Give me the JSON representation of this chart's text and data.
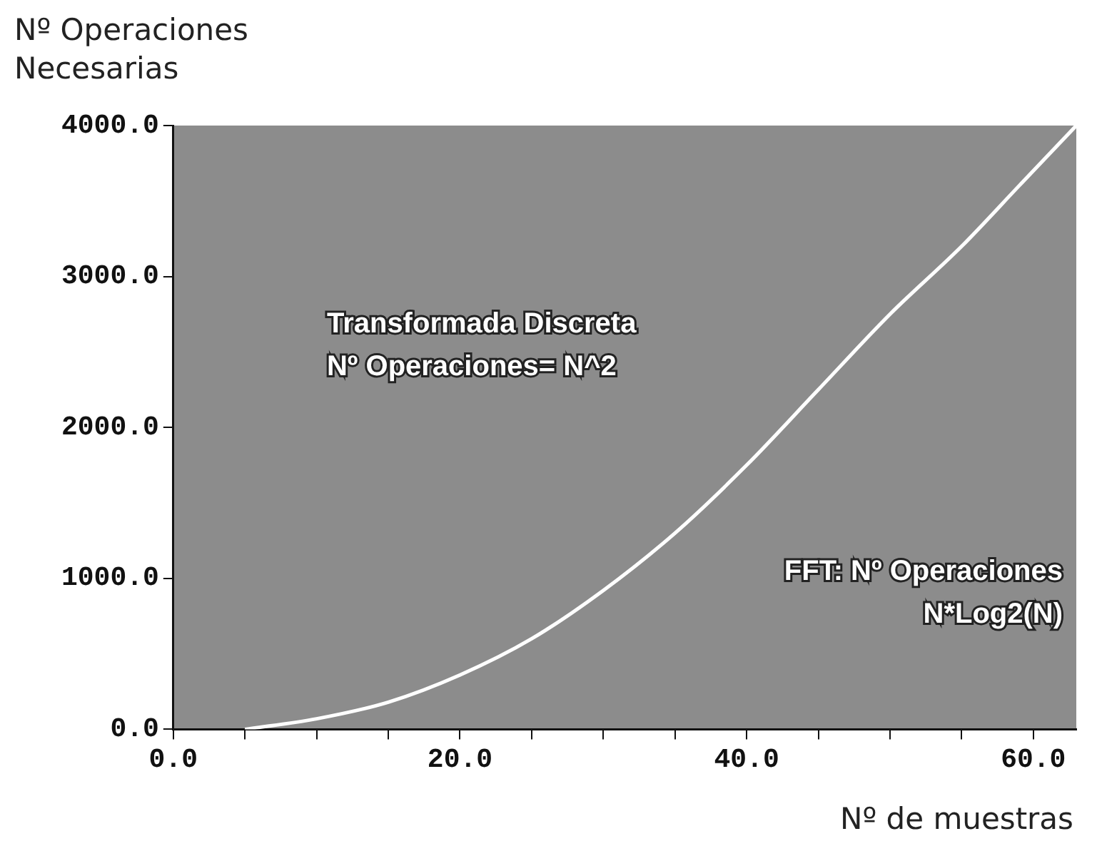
{
  "chart_data": {
    "type": "line",
    "ylabel": "Nº Operaciones\nNecesarias",
    "xlabel": "Nº de muestras",
    "x": [
      5,
      10,
      15,
      20,
      25,
      30,
      35,
      40,
      45,
      50,
      55,
      59,
      63
    ],
    "series": [
      {
        "color": "#ffffff",
        "values": [
          0,
          70,
          180,
          360,
          600,
          920,
          1300,
          1750,
          2250,
          2750,
          3200,
          3600,
          4000
        ]
      }
    ],
    "xlim": [
      0,
      63
    ],
    "xticks": [
      {
        "value": 0,
        "label": "0.0"
      },
      {
        "value": 5,
        "label": null
      },
      {
        "value": 10,
        "label": null
      },
      {
        "value": 15,
        "label": null
      },
      {
        "value": 20,
        "label": "20.0"
      },
      {
        "value": 25,
        "label": null
      },
      {
        "value": 30,
        "label": null
      },
      {
        "value": 35,
        "label": null
      },
      {
        "value": 40,
        "label": "40.0"
      },
      {
        "value": 45,
        "label": null
      },
      {
        "value": 50,
        "label": null
      },
      {
        "value": 55,
        "label": null
      },
      {
        "value": 60,
        "label": "60.0"
      }
    ],
    "ylim": [
      0,
      4000
    ],
    "yticks": [
      {
        "value": 0,
        "label": "0.0"
      },
      {
        "value": 1000,
        "label": "1000.0"
      },
      {
        "value": 2000,
        "label": "2000.0"
      },
      {
        "value": 3000,
        "label": "3000.0"
      },
      {
        "value": 4000,
        "label": "4000.0"
      }
    ],
    "annotations": [
      "Transformada Discreta\nNº Operaciones= N^2",
      "FFT: Nº Operaciones\nN*Log2(N)"
    ],
    "grid": false,
    "legend": false,
    "marker": "none",
    "line_style": "solid"
  }
}
